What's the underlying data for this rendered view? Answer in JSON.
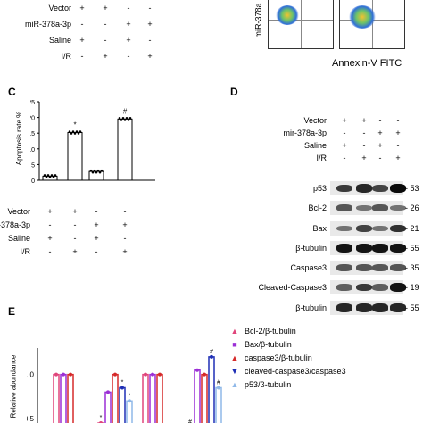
{
  "top_table": {
    "rows": [
      {
        "label": "Vector",
        "signs": [
          "+",
          "+",
          "-",
          "-"
        ]
      },
      {
        "label": "miR-378a-3p",
        "signs": [
          "-",
          "-",
          "+",
          "+"
        ]
      },
      {
        "label": "Saline",
        "signs": [
          "+",
          "-",
          "+",
          "-"
        ]
      },
      {
        "label": "I/R",
        "signs": [
          "-",
          "+",
          "-",
          "+"
        ]
      }
    ]
  },
  "flow_panel": {
    "y_label": "miR-378a",
    "x_label": "Annexin-V FITC"
  },
  "panel_c": {
    "letter": "C",
    "chart_data": {
      "type": "bar",
      "ylabel": "Apoptosis rate %",
      "ylim": [
        0,
        25
      ],
      "yticks": [
        "0",
        "5",
        "10",
        "15",
        "20",
        "25"
      ],
      "values": [
        1.3,
        15.2,
        2.8,
        19.5
      ],
      "markers": [
        "",
        "*",
        "",
        "#"
      ]
    },
    "rows": [
      {
        "label": "Vector",
        "signs": [
          "+",
          "+",
          "-",
          "-"
        ]
      },
      {
        "label": "miR-378a-3p",
        "signs": [
          "-",
          "-",
          "+",
          "+"
        ]
      },
      {
        "label": "Saline",
        "signs": [
          "+",
          "-",
          "+",
          "-"
        ]
      },
      {
        "label": "I/R",
        "signs": [
          "-",
          "+",
          "-",
          "+"
        ]
      }
    ]
  },
  "panel_d": {
    "letter": "D",
    "rows": [
      {
        "label": "Vector",
        "signs": [
          "+",
          "+",
          "-",
          "-"
        ]
      },
      {
        "label": "mir-378a-3p",
        "signs": [
          "-",
          "-",
          "+",
          "+"
        ]
      },
      {
        "label": "Saline",
        "signs": [
          "+",
          "-",
          "+",
          "-"
        ]
      },
      {
        "label": "I/R",
        "signs": [
          "-",
          "+",
          "-",
          "+"
        ]
      }
    ],
    "blots": [
      {
        "protein": "p53",
        "kda": "53",
        "intensity": [
          0.75,
          0.85,
          0.7,
          1.0
        ]
      },
      {
        "protein": "Bcl-2",
        "kda": "26",
        "intensity": [
          0.6,
          0.45,
          0.6,
          0.45
        ]
      },
      {
        "protein": "Bax",
        "kda": "21",
        "intensity": [
          0.45,
          0.7,
          0.45,
          0.8
        ]
      },
      {
        "protein": "β-tubulin",
        "kda": "55",
        "intensity": [
          0.95,
          0.95,
          0.95,
          0.95
        ]
      },
      {
        "protein": "Caspase3",
        "kda": "35",
        "intensity": [
          0.6,
          0.6,
          0.6,
          0.6
        ]
      },
      {
        "protein": "Cleaved-Caspase3",
        "kda": "19",
        "intensity": [
          0.55,
          0.75,
          0.55,
          0.95
        ]
      },
      {
        "protein": "β-tubulin",
        "kda": "55",
        "intensity": [
          0.85,
          0.85,
          0.85,
          0.85
        ]
      }
    ]
  },
  "panel_e": {
    "letter": "E",
    "ylabel": "Relative abundance",
    "yticks": [
      "1.0",
      "0.5"
    ],
    "legend": [
      {
        "marker": "▲",
        "label": "Bcl-2/β-tubulin",
        "color": "#e0457b"
      },
      {
        "marker": "■",
        "label": "Bax/β-tubulin",
        "color": "#9b2fd6"
      },
      {
        "marker": "▲",
        "label": "caspase3/β-tubulin",
        "color": "#d62a2a"
      },
      {
        "marker": "▼",
        "label": "cleaved-caspase3/caspase3",
        "color": "#1f2fb5"
      },
      {
        "marker": "▲",
        "label": "p53/β-tubulin",
        "color": "#8fb8e8"
      }
    ],
    "chart_data": {
      "type": "bar",
      "series": [
        {
          "name": "Bcl-2/β-tubulin",
          "values": [
            1.0,
            0.45,
            1.0,
            0.4
          ]
        },
        {
          "name": "Bax/β-tubulin",
          "values": [
            1.0,
            0.8,
            1.0,
            1.05
          ]
        },
        {
          "name": "caspase3/β-tubulin",
          "values": [
            1.0,
            1.0,
            1.0,
            1.0
          ]
        },
        {
          "name": "cleaved-caspase3/caspase3",
          "values": [
            0.3,
            0.85,
            0.3,
            1.2
          ]
        },
        {
          "name": "p53/β-tubulin",
          "values": [
            0.4,
            0.7,
            0.4,
            0.85
          ]
        }
      ],
      "markers": [
        "",
        "*",
        "",
        "#"
      ],
      "ylim_visible": [
        0.45,
        1.3
      ]
    }
  }
}
